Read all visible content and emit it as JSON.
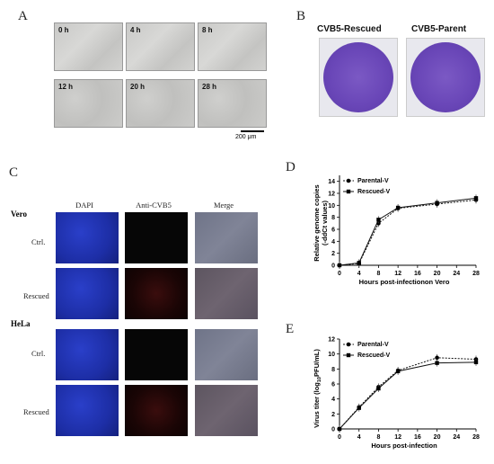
{
  "panels": {
    "a": "A",
    "b": "B",
    "c": "C",
    "d": "D",
    "e": "E"
  },
  "panel_a": {
    "timepoints": [
      "0 h",
      "4 h",
      "8 h",
      "12 h",
      "20 h",
      "28 h"
    ],
    "scale_bar": "200 μm"
  },
  "panel_b": {
    "left": "CVB5-Rescued",
    "right": "CVB5-Parent"
  },
  "panel_c": {
    "columns": [
      "DAPI",
      "Anti-CVB5",
      "Merge"
    ],
    "groups": [
      {
        "name": "Vero",
        "rows": [
          "Ctrl.",
          "Rescued"
        ]
      },
      {
        "name": "HeLa",
        "rows": [
          "Ctrl.",
          "Rescued"
        ]
      }
    ]
  },
  "chart_data": [
    {
      "type": "line",
      "panel": "D",
      "ylabel": "Relative genome copies (-ddCt values)",
      "ylabel_lines": [
        "Relative genome copies",
        "(-ddCt values)"
      ],
      "xlabel": "Hours post-infectionon Vero",
      "x": [
        0,
        4,
        8,
        12,
        20,
        28
      ],
      "xticks": [
        0,
        4,
        8,
        12,
        16,
        20,
        24,
        28
      ],
      "yticks": [
        0,
        2,
        4,
        6,
        8,
        10,
        12,
        14
      ],
      "xlim": [
        0,
        28
      ],
      "ylim": [
        0,
        15
      ],
      "legend": "top-left",
      "series": [
        {
          "name": "Parental-V",
          "marker": "circle",
          "values": [
            0,
            0.3,
            7.0,
            9.5,
            10.2,
            10.9
          ]
        },
        {
          "name": "Rescued-V",
          "marker": "square",
          "values": [
            0,
            0.4,
            7.6,
            9.6,
            10.4,
            11.2
          ]
        }
      ]
    },
    {
      "type": "line",
      "panel": "E",
      "ylabel": "Virus titer (log10PFU/mL)",
      "ylabel_parts": [
        "Virus titer (log",
        "10",
        "PFU/mL)"
      ],
      "xlabel": "Hours post-infection",
      "x": [
        0,
        4,
        8,
        12,
        20,
        28
      ],
      "xticks": [
        0,
        4,
        8,
        12,
        16,
        20,
        24,
        28
      ],
      "yticks": [
        0,
        2,
        4,
        6,
        8,
        10,
        12
      ],
      "xlim": [
        0,
        28
      ],
      "ylim": [
        0,
        12
      ],
      "legend": "top-left",
      "series": [
        {
          "name": "Parental-V",
          "marker": "circle",
          "values": [
            0,
            2.9,
            5.6,
            7.8,
            9.5,
            9.3
          ]
        },
        {
          "name": "Rescued-V",
          "marker": "square",
          "values": [
            0,
            2.8,
            5.4,
            7.7,
            8.8,
            8.9
          ]
        }
      ]
    }
  ]
}
